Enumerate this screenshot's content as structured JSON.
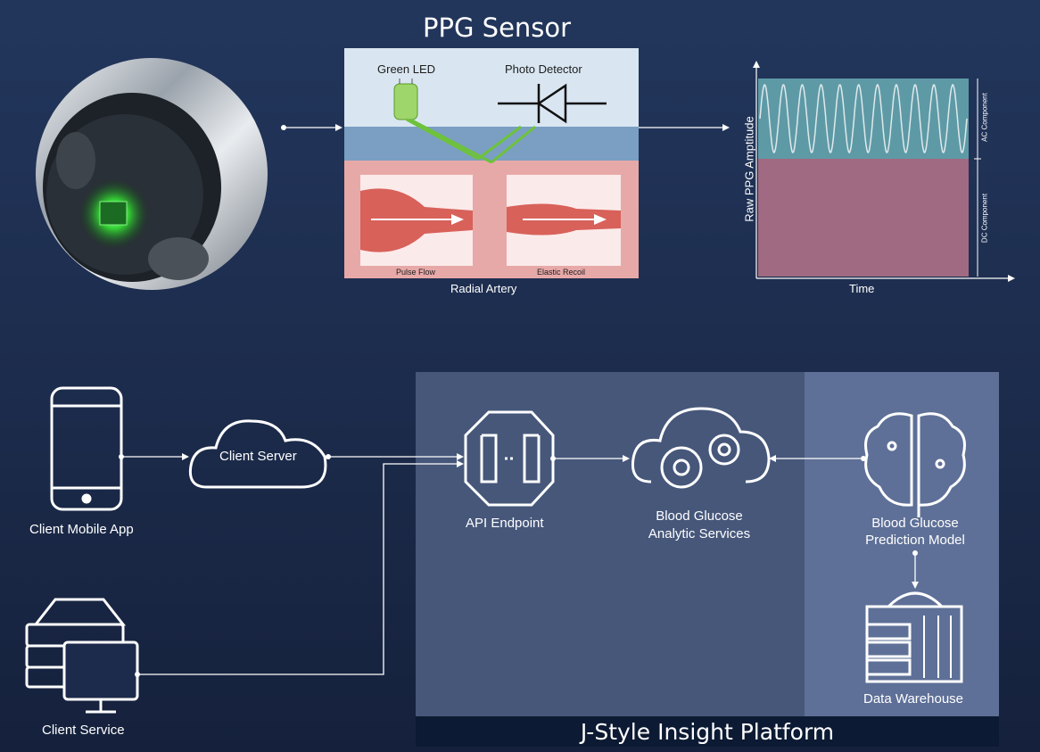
{
  "sensor": {
    "title": "PPG Sensor",
    "green_led": "Green LED",
    "photo_detector": "Photo Detector",
    "pulse_flow": "Pulse Flow",
    "elastic_recoil": "Elastic Recoil",
    "radial_artery": "Radial Artery"
  },
  "graph": {
    "ylabel": "Raw PPG Amptitude",
    "xlabel": "Time",
    "ac": "AC Component",
    "dc": "DC Component"
  },
  "nodes": {
    "mobile_app": "Client Mobile App",
    "client_server": "Client Server",
    "client_service": "Client Service",
    "api_endpoint": "API Endpoint",
    "analytics_1": "Blood Glucose",
    "analytics_2": "Analytic Services",
    "prediction_1": "Blood Glucose",
    "prediction_2": "Prediction Model",
    "warehouse": "Data Warehouse"
  },
  "platform": {
    "label": "J-Style Insight Platform"
  },
  "colors": {
    "green": "#3ec93e",
    "skin": "#7a9fc2",
    "artery": "#e7a9a8",
    "ac_band": "#5e9aa6",
    "dc_band": "#a06a82"
  }
}
